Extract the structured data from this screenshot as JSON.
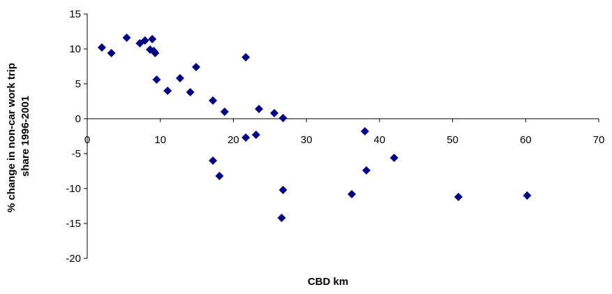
{
  "chart_data": {
    "type": "scatter",
    "title": "",
    "xlabel": "CBD km",
    "ylabel_lines": [
      "% change in non-car work trip",
      "share 1996-2001"
    ],
    "xlim": [
      0,
      70
    ],
    "ylim": [
      -20,
      15
    ],
    "x_ticks": [
      0,
      10,
      20,
      30,
      40,
      50,
      60,
      70
    ],
    "y_ticks": [
      15,
      10,
      5,
      0,
      -5,
      -10,
      -15,
      -20
    ],
    "grid": false,
    "legend": "none",
    "marker": "diamond",
    "colors": {
      "marker": "#000080",
      "axis": "#000000"
    },
    "series": [
      {
        "points": [
          {
            "x": 2.0,
            "y": 10.2
          },
          {
            "x": 3.3,
            "y": 9.4
          },
          {
            "x": 5.4,
            "y": 11.6
          },
          {
            "x": 7.2,
            "y": 10.8
          },
          {
            "x": 7.9,
            "y": 11.2
          },
          {
            "x": 8.6,
            "y": 9.9
          },
          {
            "x": 8.9,
            "y": 11.4
          },
          {
            "x": 9.1,
            "y": 9.7
          },
          {
            "x": 9.3,
            "y": 9.4
          },
          {
            "x": 9.5,
            "y": 5.6
          },
          {
            "x": 11.0,
            "y": 4.0
          },
          {
            "x": 12.7,
            "y": 5.8
          },
          {
            "x": 14.1,
            "y": 3.8
          },
          {
            "x": 14.9,
            "y": 7.4
          },
          {
            "x": 17.2,
            "y": 2.6
          },
          {
            "x": 18.8,
            "y": 1.0
          },
          {
            "x": 17.2,
            "y": -6.0
          },
          {
            "x": 18.1,
            "y": -8.2
          },
          {
            "x": 21.7,
            "y": 8.8
          },
          {
            "x": 21.7,
            "y": -2.7
          },
          {
            "x": 23.1,
            "y": -2.3
          },
          {
            "x": 23.5,
            "y": 1.4
          },
          {
            "x": 25.6,
            "y": 0.8
          },
          {
            "x": 26.8,
            "y": 0.1
          },
          {
            "x": 26.8,
            "y": -10.2
          },
          {
            "x": 26.6,
            "y": -14.2
          },
          {
            "x": 36.2,
            "y": -10.8
          },
          {
            "x": 38.0,
            "y": -1.8
          },
          {
            "x": 38.2,
            "y": -7.4
          },
          {
            "x": 42.0,
            "y": -5.6
          },
          {
            "x": 50.8,
            "y": -11.2
          },
          {
            "x": 60.2,
            "y": -11.0
          }
        ]
      }
    ]
  }
}
